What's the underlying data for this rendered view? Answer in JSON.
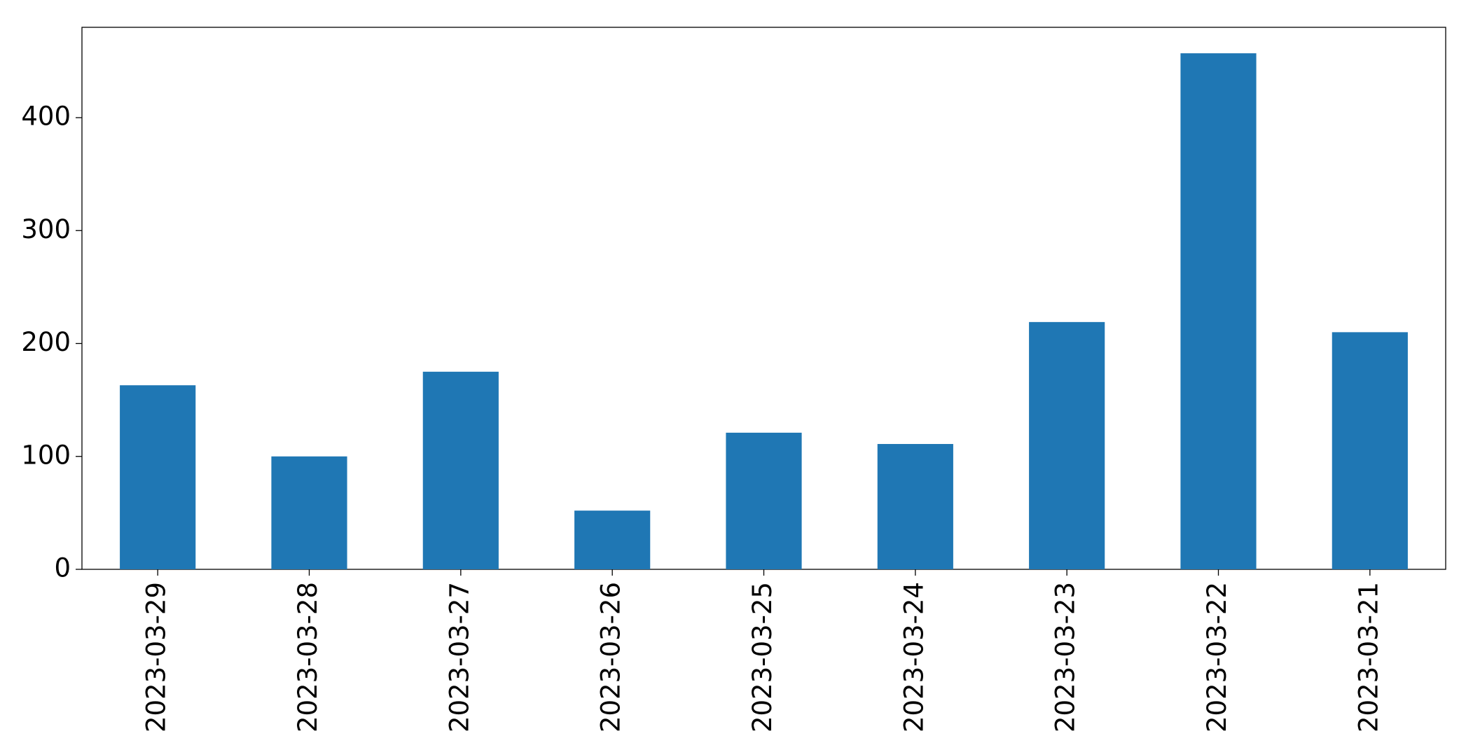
{
  "chart_data": {
    "type": "bar",
    "categories": [
      "2023-03-29",
      "2023-03-28",
      "2023-03-27",
      "2023-03-26",
      "2023-03-25",
      "2023-03-24",
      "2023-03-23",
      "2023-03-22",
      "2023-03-21"
    ],
    "values": [
      163,
      100,
      175,
      52,
      121,
      111,
      219,
      457,
      210
    ],
    "color": "#1f77b4",
    "ylim": [
      0,
      480
    ],
    "yticks": [
      0,
      100,
      200,
      300,
      400
    ],
    "grid": false
  }
}
